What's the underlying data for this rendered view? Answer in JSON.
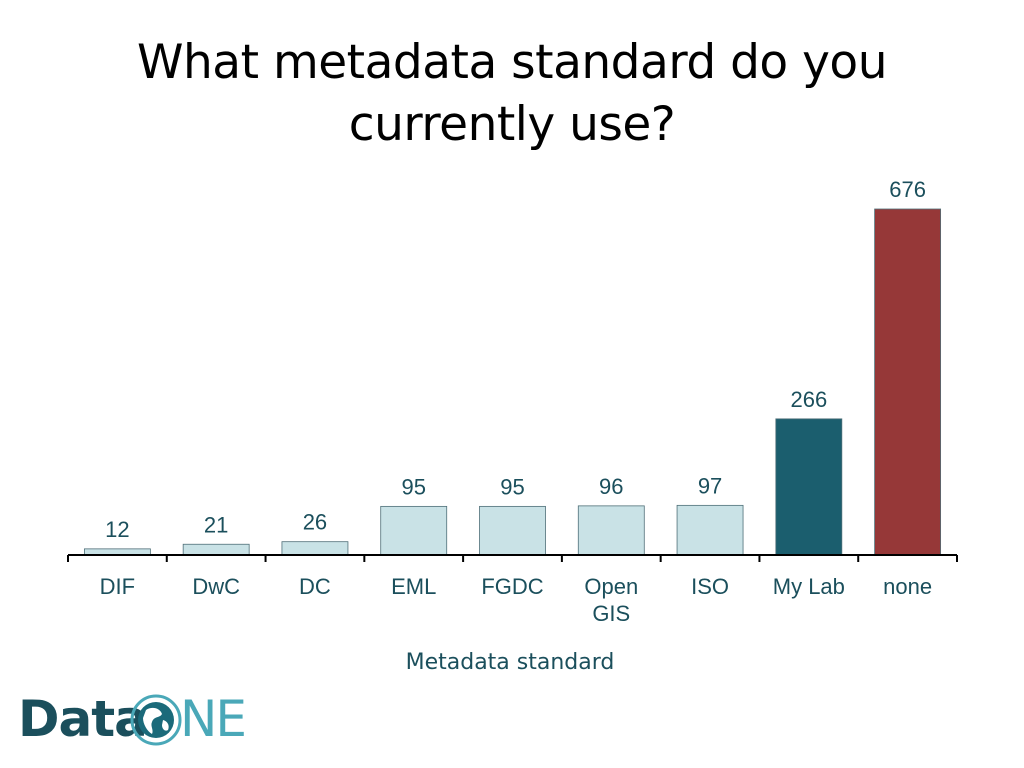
{
  "slide": {
    "title": "What metadata standard do you currently use?"
  },
  "chart_data": {
    "type": "bar",
    "categories": [
      "DIF",
      "DwC",
      "DC",
      "EML",
      "FGDC",
      "Open GIS",
      "ISO",
      "My Lab",
      "none"
    ],
    "values": [
      12,
      21,
      26,
      95,
      95,
      96,
      97,
      266,
      676
    ],
    "bar_colors": [
      "#c9e2e6",
      "#c9e2e6",
      "#c9e2e6",
      "#c9e2e6",
      "#c9e2e6",
      "#c9e2e6",
      "#c9e2e6",
      "#1b5e6e",
      "#963838"
    ],
    "title": "",
    "xlabel": "Metadata standard",
    "ylabel": "",
    "ylim": [
      0,
      700
    ],
    "data_labels": true,
    "grid": false,
    "legend": "none"
  },
  "logo": {
    "text_a": "Data",
    "text_b": "NE",
    "colors": {
      "data": "#1b4f5c",
      "one": "#4aa8b8"
    }
  }
}
